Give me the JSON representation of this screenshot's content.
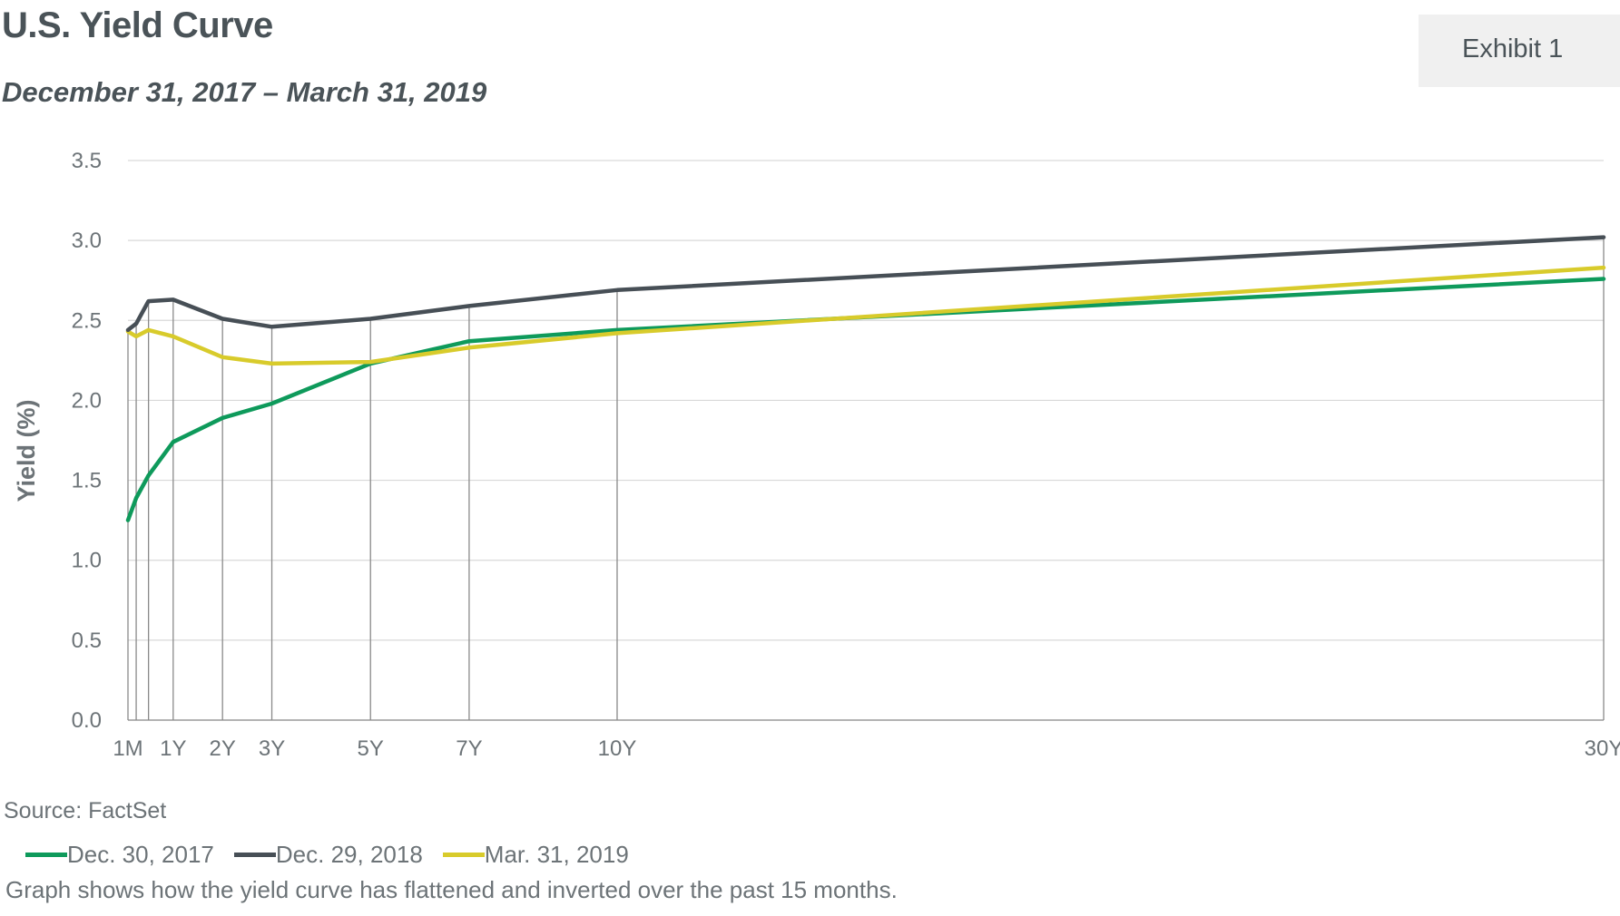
{
  "header": {
    "title": "U.S. Yield Curve",
    "subtitle": "December  31, 2017 – March 31, 2019",
    "exhibit_label": "Exhibit 1"
  },
  "footer": {
    "source": "Source: FactSet",
    "note": "Graph shows how the yield curve has flattened and inverted over the past 15 months."
  },
  "chart_data": {
    "type": "line",
    "title": "U.S. Yield Curve",
    "ylabel": "Yield (%)",
    "xlabel": "",
    "ylim": [
      0,
      3.5
    ],
    "yticks": [
      "0.0",
      "0.5",
      "1.0",
      "1.5",
      "2.0",
      "2.5",
      "3.0",
      "3.5"
    ],
    "ytick_values": [
      0,
      0.5,
      1.0,
      1.5,
      2.0,
      2.5,
      3.0,
      3.5
    ],
    "maturities_years": [
      0.0833,
      0.25,
      0.5,
      1,
      2,
      3,
      5,
      7,
      10,
      30
    ],
    "xtick_labels": [
      {
        "label": "1M",
        "at": 0.0833
      },
      {
        "label": "1Y",
        "at": 1
      },
      {
        "label": "2Y",
        "at": 2
      },
      {
        "label": "3Y",
        "at": 3
      },
      {
        "label": "5Y",
        "at": 5
      },
      {
        "label": "7Y",
        "at": 7
      },
      {
        "label": "10Y",
        "at": 10
      },
      {
        "label": "30Y",
        "at": 30
      }
    ],
    "grid": true,
    "legend_position": "bottom-left",
    "series": [
      {
        "name": "Dec. 30, 2017",
        "color": "#0e9a5b",
        "values": [
          1.25,
          1.39,
          1.53,
          1.74,
          1.89,
          1.98,
          2.23,
          2.37,
          2.44,
          2.76
        ]
      },
      {
        "name": "Dec. 29, 2018",
        "color": "#474f56",
        "values": [
          2.44,
          2.48,
          2.62,
          2.63,
          2.51,
          2.46,
          2.51,
          2.59,
          2.69,
          3.02
        ]
      },
      {
        "name": "Mar. 31, 2019",
        "color": "#d8cb2b",
        "values": [
          2.43,
          2.4,
          2.44,
          2.4,
          2.27,
          2.23,
          2.24,
          2.33,
          2.42,
          2.83
        ]
      }
    ]
  }
}
